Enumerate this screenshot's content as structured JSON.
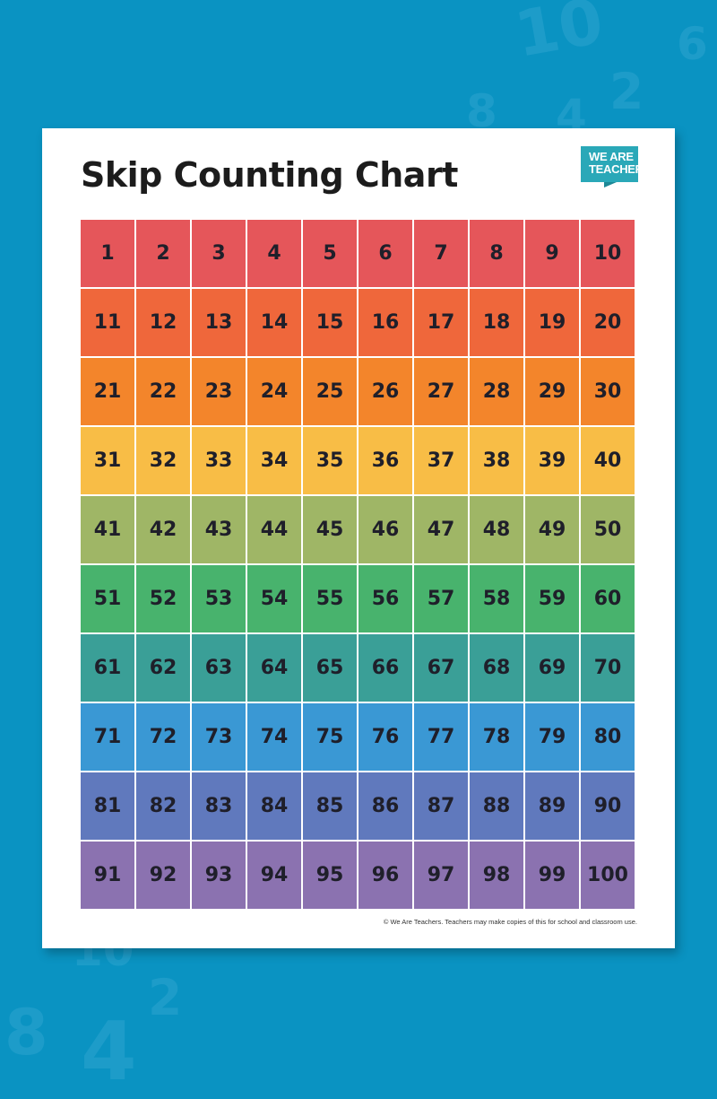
{
  "title": "Skip Counting Chart",
  "logo": {
    "line1": "WE ARE",
    "line2": "TEACHERS"
  },
  "footer": "© We Are Teachers. Teachers may make copies of this for school and classroom use.",
  "row_colors": [
    "#e5565a",
    "#ef673b",
    "#f3852b",
    "#f8bd46",
    "#9fb666",
    "#48b36d",
    "#3a9f97",
    "#3a98d4",
    "#6079bd",
    "#8b72b0"
  ],
  "background_numbers": [
    "10",
    "6",
    "2",
    "8",
    "4",
    "8",
    "4",
    "2",
    "10"
  ],
  "rows": [
    [
      1,
      2,
      3,
      4,
      5,
      6,
      7,
      8,
      9,
      10
    ],
    [
      11,
      12,
      13,
      14,
      15,
      16,
      17,
      18,
      19,
      20
    ],
    [
      21,
      22,
      23,
      24,
      25,
      26,
      27,
      28,
      29,
      30
    ],
    [
      31,
      32,
      33,
      34,
      35,
      36,
      37,
      38,
      39,
      40
    ],
    [
      41,
      42,
      43,
      44,
      45,
      46,
      47,
      48,
      49,
      50
    ],
    [
      51,
      52,
      53,
      54,
      55,
      56,
      57,
      58,
      59,
      60
    ],
    [
      61,
      62,
      63,
      64,
      65,
      66,
      67,
      68,
      69,
      70
    ],
    [
      71,
      72,
      73,
      74,
      75,
      76,
      77,
      78,
      79,
      80
    ],
    [
      81,
      82,
      83,
      84,
      85,
      86,
      87,
      88,
      89,
      90
    ],
    [
      91,
      92,
      93,
      94,
      95,
      96,
      97,
      98,
      99,
      100
    ]
  ]
}
